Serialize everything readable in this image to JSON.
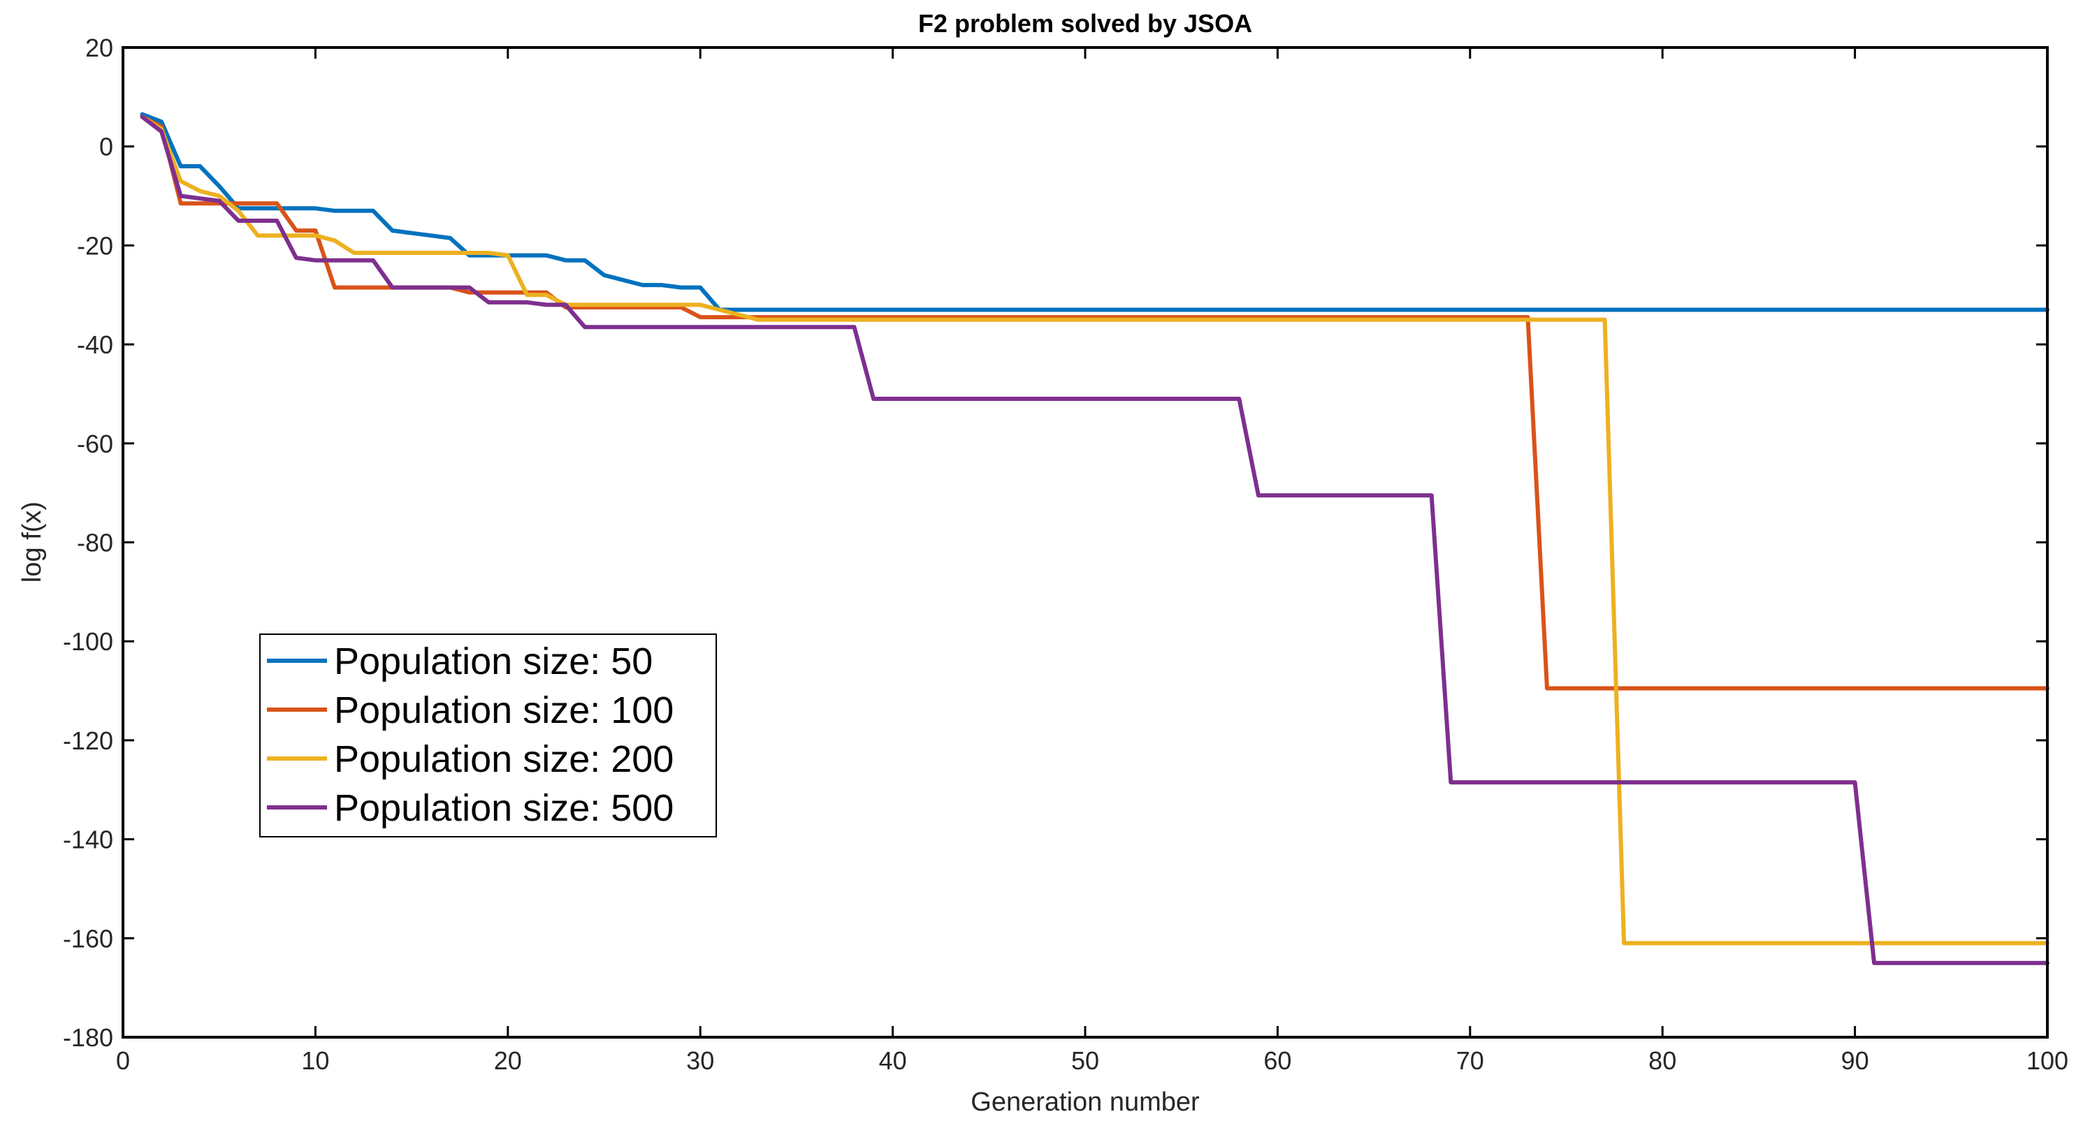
{
  "chart_data": {
    "type": "line",
    "title": "F2 problem solved by JSOA",
    "xlabel": "Generation number",
    "ylabel": "log f(x)",
    "xlim": [
      0,
      100
    ],
    "ylim": [
      -180,
      20
    ],
    "xticks": [
      0,
      10,
      20,
      30,
      40,
      50,
      60,
      70,
      80,
      90,
      100
    ],
    "yticks": [
      20,
      0,
      -20,
      -40,
      -60,
      -80,
      -100,
      -120,
      -140,
      -160,
      -180
    ],
    "legend_location": "center-left",
    "series": [
      {
        "name": "Population size: 50",
        "color": "#0072BD",
        "points": [
          [
            1,
            6.5
          ],
          [
            2,
            5
          ],
          [
            3,
            -4
          ],
          [
            4,
            -4
          ],
          [
            5,
            -8
          ],
          [
            6,
            -12.5
          ],
          [
            7,
            -12.5
          ],
          [
            8,
            -12.5
          ],
          [
            9,
            -12.5
          ],
          [
            10,
            -12.5
          ],
          [
            11,
            -13
          ],
          [
            12,
            -13
          ],
          [
            13,
            -13
          ],
          [
            14,
            -17
          ],
          [
            15,
            -17.5
          ],
          [
            16,
            -18
          ],
          [
            17,
            -18.5
          ],
          [
            18,
            -22
          ],
          [
            19,
            -22
          ],
          [
            20,
            -22
          ],
          [
            21,
            -22
          ],
          [
            22,
            -22
          ],
          [
            23,
            -23
          ],
          [
            24,
            -23
          ],
          [
            25,
            -26
          ],
          [
            26,
            -27
          ],
          [
            27,
            -28
          ],
          [
            28,
            -28
          ],
          [
            29,
            -28.5
          ],
          [
            30,
            -28.5
          ],
          [
            31,
            -33
          ],
          [
            33,
            -33
          ],
          [
            100,
            -33
          ]
        ]
      },
      {
        "name": "Population size: 100",
        "color": "#D95319",
        "points": [
          [
            1,
            6
          ],
          [
            2,
            4
          ],
          [
            3,
            -11.5
          ],
          [
            4,
            -11.5
          ],
          [
            5,
            -11.5
          ],
          [
            6,
            -11.5
          ],
          [
            7,
            -11.5
          ],
          [
            8,
            -11.5
          ],
          [
            9,
            -17
          ],
          [
            10,
            -17
          ],
          [
            11,
            -28.5
          ],
          [
            12,
            -28.5
          ],
          [
            13,
            -28.5
          ],
          [
            14,
            -28.5
          ],
          [
            15,
            -28.5
          ],
          [
            16,
            -28.5
          ],
          [
            17,
            -28.5
          ],
          [
            18,
            -29.5
          ],
          [
            19,
            -29.5
          ],
          [
            20,
            -29.5
          ],
          [
            21,
            -29.5
          ],
          [
            22,
            -29.5
          ],
          [
            23,
            -32.5
          ],
          [
            24,
            -32.5
          ],
          [
            29,
            -32.5
          ],
          [
            30,
            -34.5
          ],
          [
            73,
            -34.5
          ],
          [
            74,
            -109.5
          ],
          [
            100,
            -109.5
          ]
        ]
      },
      {
        "name": "Population size: 200",
        "color": "#EDB120",
        "points": [
          [
            1,
            6
          ],
          [
            2,
            3.5
          ],
          [
            3,
            -7
          ],
          [
            4,
            -9
          ],
          [
            5,
            -10
          ],
          [
            6,
            -13
          ],
          [
            7,
            -18
          ],
          [
            8,
            -18
          ],
          [
            9,
            -18
          ],
          [
            10,
            -18
          ],
          [
            11,
            -19
          ],
          [
            12,
            -21.5
          ],
          [
            13,
            -21.5
          ],
          [
            14,
            -21.5
          ],
          [
            15,
            -21.5
          ],
          [
            16,
            -21.5
          ],
          [
            17,
            -21.5
          ],
          [
            18,
            -21.5
          ],
          [
            19,
            -21.5
          ],
          [
            20,
            -22
          ],
          [
            21,
            -30
          ],
          [
            22,
            -30
          ],
          [
            23,
            -32
          ],
          [
            25,
            -32
          ],
          [
            30,
            -32
          ],
          [
            31,
            -33
          ],
          [
            33,
            -35
          ],
          [
            77,
            -35
          ],
          [
            78,
            -161
          ],
          [
            100,
            -161
          ]
        ]
      },
      {
        "name": "Population size: 500",
        "color": "#7E2F8E",
        "points": [
          [
            1,
            6
          ],
          [
            2,
            3
          ],
          [
            3,
            -10
          ],
          [
            4,
            -10.5
          ],
          [
            5,
            -11
          ],
          [
            6,
            -15
          ],
          [
            7,
            -15
          ],
          [
            8,
            -15
          ],
          [
            9,
            -22.5
          ],
          [
            10,
            -23
          ],
          [
            11,
            -23
          ],
          [
            12,
            -23
          ],
          [
            13,
            -23
          ],
          [
            14,
            -28.5
          ],
          [
            15,
            -28.5
          ],
          [
            16,
            -28.5
          ],
          [
            17,
            -28.5
          ],
          [
            18,
            -28.5
          ],
          [
            19,
            -31.5
          ],
          [
            20,
            -31.5
          ],
          [
            21,
            -31.5
          ],
          [
            22,
            -32
          ],
          [
            23,
            -32
          ],
          [
            24,
            -36.5
          ],
          [
            38,
            -36.5
          ],
          [
            39,
            -51
          ],
          [
            58,
            -51
          ],
          [
            59,
            -70.5
          ],
          [
            68,
            -70.5
          ],
          [
            69,
            -128.5
          ],
          [
            90,
            -128.5
          ],
          [
            91,
            -165
          ],
          [
            100,
            -165
          ]
        ]
      }
    ]
  }
}
